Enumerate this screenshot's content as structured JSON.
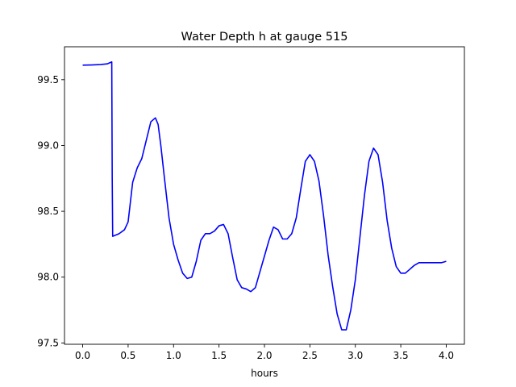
{
  "chart_data": {
    "type": "line",
    "title": "Water Depth h at gauge 515",
    "xlabel": "hours",
    "ylabel": "",
    "xlim": [
      -0.2,
      4.2
    ],
    "ylim": [
      97.49,
      99.75
    ],
    "xticks": [
      0.0,
      0.5,
      1.0,
      1.5,
      2.0,
      2.5,
      3.0,
      3.5,
      4.0
    ],
    "xtick_labels": [
      "0.0",
      "0.5",
      "1.0",
      "1.5",
      "2.0",
      "2.5",
      "3.0",
      "3.5",
      "4.0"
    ],
    "yticks": [
      97.5,
      98.0,
      98.5,
      99.0,
      99.5
    ],
    "ytick_labels": [
      "97.5",
      "98.0",
      "98.5",
      "99.0",
      "99.5"
    ],
    "grid": false,
    "series": [
      {
        "color": "#0000ff",
        "x": [
          0.0,
          0.1,
          0.2,
          0.27,
          0.32,
          0.325,
          0.33,
          0.4,
          0.46,
          0.5,
          0.55,
          0.6,
          0.65,
          0.7,
          0.75,
          0.8,
          0.83,
          0.86,
          0.9,
          0.95,
          1.0,
          1.05,
          1.1,
          1.15,
          1.2,
          1.25,
          1.3,
          1.35,
          1.4,
          1.45,
          1.5,
          1.55,
          1.6,
          1.65,
          1.7,
          1.75,
          1.8,
          1.85,
          1.9,
          1.95,
          2.0,
          2.05,
          2.1,
          2.15,
          2.2,
          2.25,
          2.3,
          2.35,
          2.4,
          2.45,
          2.5,
          2.55,
          2.6,
          2.65,
          2.7,
          2.75,
          2.8,
          2.85,
          2.9,
          2.95,
          3.0,
          3.05,
          3.1,
          3.15,
          3.2,
          3.25,
          3.3,
          3.35,
          3.4,
          3.45,
          3.5,
          3.55,
          3.6,
          3.65,
          3.7,
          3.75,
          3.8,
          3.85,
          3.9,
          3.95,
          4.0
        ],
        "y": [
          99.61,
          99.612,
          99.615,
          99.62,
          99.635,
          98.75,
          98.31,
          98.33,
          98.36,
          98.42,
          98.72,
          98.83,
          98.9,
          99.04,
          99.18,
          99.21,
          99.16,
          99.0,
          98.75,
          98.45,
          98.25,
          98.13,
          98.03,
          97.99,
          98.0,
          98.12,
          98.28,
          98.33,
          98.33,
          98.35,
          98.39,
          98.4,
          98.33,
          98.15,
          97.98,
          97.92,
          97.91,
          97.89,
          97.92,
          98.04,
          98.16,
          98.28,
          98.38,
          98.36,
          98.29,
          98.29,
          98.33,
          98.45,
          98.67,
          98.88,
          98.93,
          98.88,
          98.73,
          98.47,
          98.17,
          97.93,
          97.72,
          97.6,
          97.6,
          97.75,
          97.98,
          98.3,
          98.62,
          98.88,
          98.98,
          98.93,
          98.72,
          98.43,
          98.22,
          98.08,
          98.03,
          98.03,
          98.06,
          98.09,
          98.11,
          98.11,
          98.11,
          98.11,
          98.11,
          98.11,
          98.12
        ]
      }
    ]
  }
}
